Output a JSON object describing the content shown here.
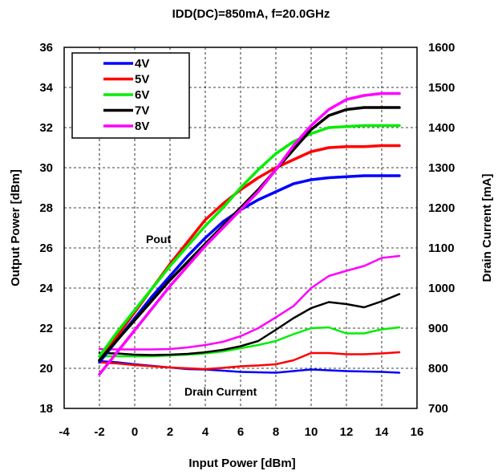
{
  "chart_data": {
    "type": "line",
    "title": "IDD(DC)=850mA, f=20.0GHz",
    "xlabel": "Input Power  [dBm]",
    "ylabel": "Output Power  [dBm]",
    "y2label": "Drain Current  [mA]",
    "xlim": [
      -4,
      16
    ],
    "ylim": [
      18,
      36
    ],
    "y2lim": [
      700,
      1600
    ],
    "xticks": [
      "-4",
      "-2",
      "0",
      "2",
      "4",
      "6",
      "8",
      "10",
      "12",
      "14",
      "16"
    ],
    "yticks": [
      "18",
      "20",
      "22",
      "24",
      "26",
      "28",
      "30",
      "32",
      "34",
      "36"
    ],
    "y2ticks": [
      "700",
      "800",
      "900",
      "1000",
      "1100",
      "1200",
      "1300",
      "1400",
      "1500",
      "1600"
    ],
    "grid": true,
    "legend_position": "top-left",
    "annotations": [
      "Pout",
      "Drain Current"
    ],
    "x": [
      -2,
      -1,
      0,
      1,
      2,
      3,
      4,
      5,
      6,
      7,
      8,
      9,
      10,
      11,
      12,
      13,
      14,
      15
    ],
    "pout_series": [
      {
        "name": "4V",
        "color": "#0000ff",
        "axis": "left",
        "values": [
          20.3,
          21.4,
          22.5,
          23.6,
          24.6,
          25.6,
          26.5,
          27.3,
          27.9,
          28.4,
          28.8,
          29.2,
          29.4,
          29.5,
          29.55,
          29.6,
          29.6,
          29.6
        ]
      },
      {
        "name": "5V",
        "color": "#ff0000",
        "axis": "left",
        "values": [
          20.4,
          21.6,
          22.8,
          24.0,
          25.2,
          26.3,
          27.4,
          28.2,
          28.9,
          29.5,
          30.0,
          30.4,
          30.8,
          31.0,
          31.05,
          31.05,
          31.1,
          31.1
        ]
      },
      {
        "name": "6V",
        "color": "#00ee00",
        "axis": "left",
        "values": [
          20.6,
          21.8,
          22.9,
          24.0,
          25.1,
          26.1,
          27.1,
          28.0,
          29.0,
          29.9,
          30.7,
          31.3,
          31.7,
          32.0,
          32.05,
          32.1,
          32.1,
          32.1
        ]
      },
      {
        "name": "7V",
        "color": "#000000",
        "axis": "left",
        "values": [
          20.4,
          21.4,
          22.4,
          23.4,
          24.4,
          25.3,
          26.2,
          27.1,
          28.0,
          28.9,
          29.9,
          30.9,
          31.9,
          32.6,
          32.9,
          33.0,
          33.0,
          33.0
        ]
      },
      {
        "name": "8V",
        "color": "#ff00ff",
        "axis": "left",
        "values": [
          19.7,
          20.8,
          21.9,
          23.0,
          24.1,
          25.1,
          26.1,
          27.0,
          27.9,
          28.8,
          29.9,
          31.1,
          32.1,
          32.9,
          33.4,
          33.6,
          33.7,
          33.7
        ]
      }
    ],
    "drain_series": [
      {
        "name": "4V",
        "color": "#0000ff",
        "axis": "right",
        "values": [
          818,
          815,
          810,
          806,
          802,
          798,
          797,
          794,
          791,
          790,
          789,
          793,
          797,
          795,
          793,
          792,
          791,
          789
        ]
      },
      {
        "name": "5V",
        "color": "#ff0000",
        "axis": "right",
        "values": [
          815,
          812,
          808,
          805,
          802,
          800,
          798,
          801,
          805,
          807,
          810,
          820,
          838,
          838,
          835,
          835,
          837,
          840
        ]
      },
      {
        "name": "6V",
        "color": "#00ee00",
        "axis": "right",
        "values": [
          830,
          830,
          830,
          830,
          832,
          834,
          837,
          842,
          850,
          858,
          868,
          885,
          900,
          902,
          887,
          887,
          897,
          902
        ]
      },
      {
        "name": "7V",
        "color": "#000000",
        "axis": "right",
        "values": [
          838,
          837,
          834,
          833,
          834,
          836,
          840,
          846,
          855,
          868,
          896,
          925,
          950,
          965,
          960,
          952,
          967,
          985
        ]
      },
      {
        "name": "8V",
        "color": "#ff00ff",
        "axis": "right",
        "values": [
          848,
          847,
          847,
          847,
          848,
          852,
          858,
          866,
          880,
          900,
          927,
          955,
          1000,
          1030,
          1043,
          1055,
          1075,
          1080
        ]
      }
    ]
  }
}
